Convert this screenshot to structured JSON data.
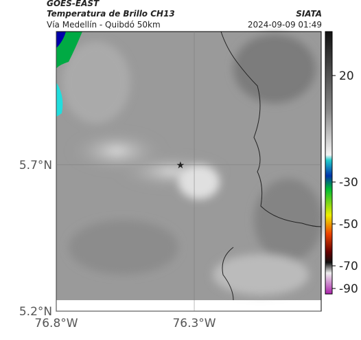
{
  "header": {
    "source": "GOES-EAST",
    "title": "Temperatura de Brillo CH13",
    "subtitle": "Vía Medellín - Quibdó 50km",
    "agency": "SIATA",
    "datetime": "2024-09-09 01:49"
  },
  "map": {
    "lonlim": [
      -76.8,
      -75.84
    ],
    "latlim": [
      5.2,
      6.155
    ],
    "lonticks": [
      {
        "value": -76.8,
        "label": "76.8°W"
      },
      {
        "value": -76.3,
        "label": "76.3°W"
      }
    ],
    "latticks": [
      {
        "value": 5.7,
        "label": "5.7°N"
      },
      {
        "value": 5.2,
        "label": "5.2°N"
      }
    ],
    "grid": true,
    "marker": {
      "lon": -76.35,
      "lat": 5.7
    }
  },
  "colorbar": {
    "ticks": [
      20,
      -30,
      -50,
      -70,
      -90
    ]
  }
}
